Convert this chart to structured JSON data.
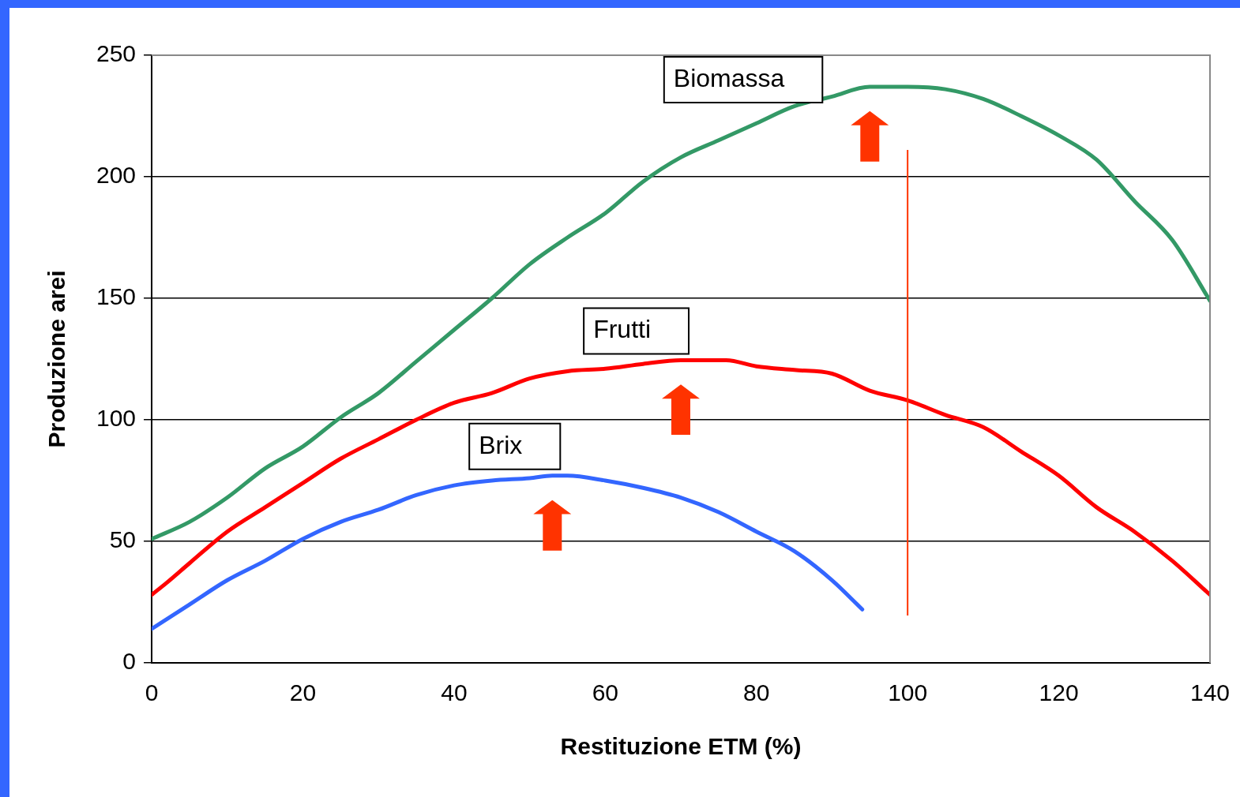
{
  "chart_data": {
    "type": "line",
    "xlabel": "Restituzione ETM (%)",
    "ylabel": "Produzione arei",
    "xlim": [
      0,
      140
    ],
    "xticks": [
      0,
      20,
      40,
      60,
      80,
      100,
      120,
      140
    ],
    "ylim": [
      0,
      250
    ],
    "yticks": [
      0,
      50,
      100,
      150,
      200,
      250
    ],
    "grid": "y",
    "legend": false,
    "marker": "none",
    "line_style": "solid",
    "series": [
      {
        "name": "Biomassa",
        "color": "#339966",
        "x": [
          0,
          5,
          10,
          15,
          20,
          25,
          30,
          35,
          40,
          45,
          50,
          55,
          60,
          65,
          70,
          75,
          80,
          85,
          90,
          95,
          100,
          105,
          110,
          115,
          120,
          125,
          130,
          135,
          140
        ],
        "values": [
          51,
          58,
          68,
          80,
          89,
          101,
          111,
          124,
          137,
          150,
          164,
          175,
          185,
          198,
          208,
          215,
          222,
          229,
          233,
          237,
          237,
          236,
          232,
          225,
          217,
          207,
          190,
          174,
          149
        ]
      },
      {
        "name": "Frutti",
        "color": "#ff0000",
        "x": [
          0,
          2,
          5,
          10,
          15,
          20,
          25,
          30,
          35,
          40,
          45,
          50,
          55,
          60,
          65,
          70,
          76,
          80,
          85,
          90,
          95,
          100,
          105,
          110,
          115,
          120,
          125,
          130,
          135,
          140
        ],
        "values": [
          28,
          33,
          41,
          54,
          64,
          74,
          84,
          92,
          100,
          107,
          111,
          117,
          120,
          121,
          123,
          124.5,
          124.5,
          122,
          120.5,
          119,
          112,
          108,
          102,
          97,
          87,
          77,
          64,
          54,
          42,
          28
        ]
      },
      {
        "name": "Brix",
        "color": "#3366ff",
        "x": [
          0,
          5,
          10,
          15,
          20,
          25,
          30,
          35,
          40,
          45,
          50,
          53,
          55,
          60,
          65,
          70,
          75,
          80,
          85,
          90,
          94
        ],
        "values": [
          14,
          24,
          34,
          42,
          51,
          58,
          63,
          69,
          73,
          75,
          76,
          77,
          77,
          75,
          72,
          68,
          62,
          54,
          46,
          34,
          22
        ]
      }
    ],
    "ref_lines": [
      {
        "axis": "x",
        "value": 100,
        "color": "#ff3300"
      }
    ]
  }
}
